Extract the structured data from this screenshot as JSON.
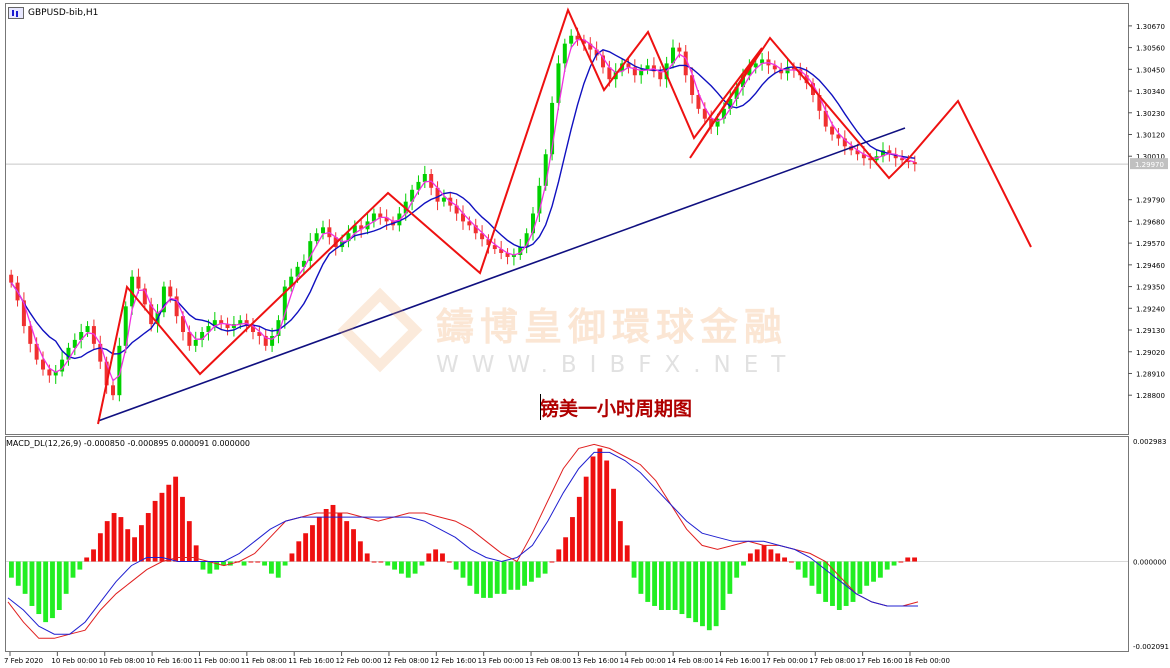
{
  "window": {
    "symbol_title": "GBPUSD-bib,H1"
  },
  "watermark": {
    "chinese": "鑄博皇御環球金融",
    "url": "WWW.BIBFX.NET"
  },
  "caption": "镑美一小时周期图",
  "colors": {
    "bull_candle": "#00d000",
    "bear_candle": "#f03030",
    "ma_blue": "#1010c0",
    "ma_magenta": "#f030e0",
    "zigzag": "#ee1111",
    "trendline": "#101080",
    "macd_pos": "#ee1010",
    "macd_neg": "#22ee22",
    "macd_line_red": "#e02020",
    "macd_line_blue": "#2020d0"
  },
  "chart_data": [
    {
      "type": "candlestick",
      "title": "GBPUSD-bib,H1",
      "y_ticks": [
        "1.30670",
        "1.30560",
        "1.30450",
        "1.30340",
        "1.30230",
        "1.30120",
        "1.30010",
        "1.29790",
        "1.29680",
        "1.29570",
        "1.29460",
        "1.29350",
        "1.29240",
        "1.29130",
        "1.29020",
        "1.28910",
        "1.28800"
      ],
      "ylim": [
        1.2872,
        1.3072
      ],
      "current_price": "1.29970",
      "x_labels": [
        "7 Feb 2020",
        "10 Feb 00:00",
        "10 Feb 08:00",
        "10 Feb 16:00",
        "11 Feb 00:00",
        "11 Feb 08:00",
        "11 Feb 16:00",
        "12 Feb 00:00",
        "12 Feb 08:00",
        "12 Feb 16:00",
        "13 Feb 00:00",
        "13 Feb 08:00",
        "13 Feb 16:00",
        "14 Feb 00:00",
        "14 Feb 08:00",
        "14 Feb 16:00",
        "17 Feb 00:00",
        "17 Feb 08:00",
        "17 Feb 16:00",
        "18 Feb 00:00"
      ],
      "close_series": [
        1.2937,
        1.2928,
        1.2915,
        1.2906,
        1.2898,
        1.2893,
        1.289,
        1.2892,
        1.2898,
        1.2904,
        1.2908,
        1.2912,
        1.2915,
        1.2906,
        1.2897,
        1.2885,
        1.288,
        1.2905,
        1.2925,
        1.294,
        1.2934,
        1.2926,
        1.2916,
        1.2922,
        1.2935,
        1.293,
        1.292,
        1.2912,
        1.2905,
        1.2908,
        1.2912,
        1.2915,
        1.2918,
        1.2916,
        1.2914,
        1.2916,
        1.2918,
        1.2915,
        1.2912,
        1.291,
        1.2905,
        1.291,
        1.2918,
        1.2935,
        1.294,
        1.2945,
        1.2948,
        1.2958,
        1.2962,
        1.2965,
        1.296,
        1.2955,
        1.2958,
        1.2962,
        1.2966,
        1.2964,
        1.2968,
        1.2972,
        1.297,
        1.2968,
        1.2966,
        1.2972,
        1.2978,
        1.2984,
        1.2988,
        1.2992,
        1.2985,
        1.2978,
        1.298,
        1.2976,
        1.2972,
        1.2968,
        1.2966,
        1.2962,
        1.2959,
        1.2956,
        1.2954,
        1.2952,
        1.295,
        1.2951,
        1.2955,
        1.2962,
        1.2972,
        1.2986,
        1.3002,
        1.3028,
        1.3048,
        1.3058,
        1.3062,
        1.306,
        1.3058,
        1.3055,
        1.3052,
        1.3046,
        1.304,
        1.3044,
        1.3048,
        1.3046,
        1.3042,
        1.3045,
        1.3047,
        1.3044,
        1.304,
        1.3048,
        1.3056,
        1.3054,
        1.3042,
        1.3032,
        1.3025,
        1.302,
        1.3016,
        1.302,
        1.3025,
        1.303,
        1.3036,
        1.3042,
        1.3046,
        1.3048,
        1.305,
        1.3047,
        1.3045,
        1.3043,
        1.3046,
        1.3045,
        1.3042,
        1.3038,
        1.3032,
        1.3024,
        1.3016,
        1.3012,
        1.301,
        1.3006,
        1.3004,
        1.3002,
        1.3,
        1.2999,
        1.3001,
        1.3004,
        1.3002,
        1.3,
        1.2999,
        1.2998,
        1.2997
      ]
    },
    {
      "type": "bar",
      "title": "MACD_DL(12,26,9) -0.000850 -0.000895 0.000091 0.000000",
      "y_ticks": [
        "0.002983",
        "0.000000",
        "-0.002091"
      ],
      "ylim": [
        -0.002091,
        0.002983
      ],
      "histogram": [
        -0.0004,
        -0.0006,
        -0.0008,
        -0.0011,
        -0.0013,
        -0.0015,
        -0.0014,
        -0.0012,
        -0.0008,
        -0.0004,
        -0.0002,
        0.0001,
        0.0003,
        0.0007,
        0.001,
        0.0012,
        0.0011,
        0.0008,
        0.0006,
        0.0009,
        0.0012,
        0.0015,
        0.0017,
        0.0019,
        0.0021,
        0.0016,
        0.001,
        0.0004,
        -0.0002,
        -0.0003,
        -0.0002,
        -0.0001,
        -0.0001,
        0.0,
        -0.0001,
        0.0,
        0.0,
        -0.0001,
        -0.0003,
        -0.0004,
        -0.0001,
        0.0002,
        0.0005,
        0.0007,
        0.0009,
        0.0011,
        0.0013,
        0.0014,
        0.0012,
        0.001,
        0.0008,
        0.0005,
        0.0002,
        0.0,
        0.0,
        -0.0001,
        -0.0002,
        -0.0003,
        -0.0004,
        -0.0003,
        -0.0001,
        0.0002,
        0.0003,
        0.0002,
        0.0,
        -0.0002,
        -0.0004,
        -0.0006,
        -0.0008,
        -0.0009,
        -0.0009,
        -0.0008,
        -0.0008,
        -0.0007,
        -0.0007,
        -0.0006,
        -0.0005,
        -0.0004,
        -0.0003,
        0.0,
        0.0003,
        0.0006,
        0.0011,
        0.0016,
        0.0021,
        0.0026,
        0.0028,
        0.0025,
        0.0018,
        0.001,
        0.0004,
        -0.0004,
        -0.0008,
        -0.001,
        -0.0011,
        -0.0012,
        -0.0012,
        -0.0012,
        -0.0013,
        -0.0014,
        -0.0015,
        -0.0016,
        -0.0017,
        -0.0016,
        -0.0012,
        -0.0008,
        -0.0004,
        -0.0001,
        0.0002,
        0.0003,
        0.0004,
        0.0003,
        0.0002,
        0.0001,
        0.0,
        -0.0002,
        -0.0004,
        -0.0006,
        -0.0008,
        -0.001,
        -0.0011,
        -0.0012,
        -0.0011,
        -0.001,
        -0.0008,
        -0.0006,
        -0.0005,
        -0.0004,
        -0.0002,
        -0.0001,
        0.0,
        0.0001,
        0.0001
      ],
      "signal_red": [
        -0.001,
        -0.0015,
        -0.0019,
        -0.0019,
        -0.0018,
        -0.0017,
        -0.0012,
        -0.0008,
        -0.0005,
        -0.0002,
        0.0,
        0.0001,
        0.0001,
        0.0,
        -0.0001,
        0.0,
        0.0002,
        0.0006,
        0.001,
        0.0011,
        0.0012,
        0.0012,
        0.0012,
        0.0011,
        0.001,
        0.0011,
        0.0012,
        0.0012,
        0.0011,
        0.001,
        0.0008,
        0.0005,
        0.0002,
        0.0,
        0.0007,
        0.0015,
        0.0023,
        0.0028,
        0.0029,
        0.0028,
        0.0026,
        0.0024,
        0.002,
        0.0014,
        0.0008,
        0.0004,
        0.0003,
        0.0004,
        0.0005,
        0.0004,
        0.0004,
        0.0003,
        0.0002,
        0.0,
        -0.0004,
        -0.0008,
        -0.001,
        -0.0011,
        -0.0011,
        -0.001
      ],
      "signal_blue": [
        -0.0009,
        -0.0012,
        -0.0016,
        -0.0018,
        -0.0018,
        -0.0015,
        -0.001,
        -0.0005,
        -0.0001,
        0.0001,
        0.0001,
        0.0,
        0.0,
        0.0,
        0.0,
        0.0002,
        0.0005,
        0.0008,
        0.001,
        0.0011,
        0.0011,
        0.0011,
        0.0011,
        0.0011,
        0.0011,
        0.0011,
        0.0011,
        0.001,
        0.0008,
        0.0006,
        0.0003,
        0.0001,
        0.0,
        0.0001,
        0.0004,
        0.001,
        0.0017,
        0.0023,
        0.0027,
        0.0027,
        0.0025,
        0.0022,
        0.0018,
        0.0014,
        0.001,
        0.0007,
        0.0006,
        0.0005,
        0.0005,
        0.0005,
        0.0004,
        0.0003,
        0.0001,
        -0.0002,
        -0.0005,
        -0.0008,
        -0.001,
        -0.0011,
        -0.0011,
        -0.0011
      ]
    }
  ]
}
